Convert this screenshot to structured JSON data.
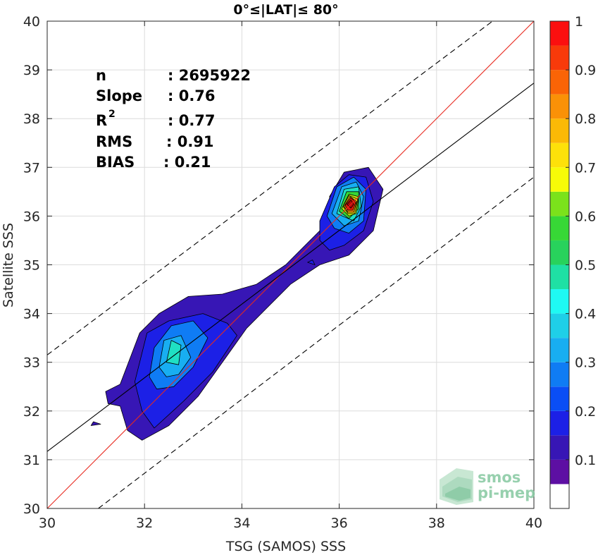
{
  "chart_data": {
    "type": "heatmap",
    "subtype": "filled-contour density (normalized)",
    "title": "0°≤|LAT|≤ 80°",
    "xlabel": "TSG (SAMOS) SSS",
    "ylabel": "Satellite SSS",
    "xlim": [
      30,
      40
    ],
    "ylim": [
      30,
      40
    ],
    "xticks": [
      "30",
      "32",
      "34",
      "36",
      "38",
      "40"
    ],
    "yticks": [
      "30",
      "31",
      "32",
      "33",
      "34",
      "35",
      "36",
      "37",
      "38",
      "39",
      "40"
    ],
    "grid": true,
    "stats": [
      {
        "label": "n",
        "value": ": 2695922"
      },
      {
        "label": "Slope",
        "value": ": 0.76"
      },
      {
        "label": "R",
        "sup": "2",
        "value": ": 0.77"
      },
      {
        "label": "RMS",
        "value": ": 0.91"
      },
      {
        "label": "BIAS",
        "value": ": 0.21"
      }
    ],
    "lines": [
      {
        "kind": "one-to-one",
        "color": "#e8281e",
        "style": "solid",
        "points": [
          [
            30,
            30
          ],
          [
            40,
            40
          ]
        ]
      },
      {
        "kind": "regression",
        "color": "#000000",
        "style": "solid",
        "points": [
          [
            30,
            31.17
          ],
          [
            40,
            38.73
          ]
        ]
      },
      {
        "kind": "upper-bound",
        "color": "#000000",
        "style": "dashed",
        "points": [
          [
            30,
            33.15
          ],
          [
            39.15,
            40
          ]
        ]
      },
      {
        "kind": "lower-bound",
        "color": "#000000",
        "style": "dashed",
        "points": [
          [
            31.05,
            30
          ],
          [
            40,
            36.8
          ]
        ]
      }
    ],
    "density_levels": [
      0.05,
      0.1,
      0.2,
      0.3,
      0.4,
      0.5,
      0.6,
      0.7,
      0.8,
      0.9
    ],
    "contours": [
      {
        "level": 0.05,
        "color": "#3716b5",
        "points": [
          [
            30.9,
            31.7
          ],
          [
            31.1,
            31.73
          ],
          [
            30.95,
            31.78
          ]
        ]
      },
      {
        "level": 0.05,
        "color": "#3716b5",
        "points": [
          [
            31.2,
            32.4
          ],
          [
            31.5,
            32.55
          ],
          [
            31.9,
            33.6
          ],
          [
            32.3,
            34.0
          ],
          [
            32.9,
            34.35
          ],
          [
            33.6,
            34.4
          ],
          [
            34.3,
            34.6
          ],
          [
            34.9,
            35.0
          ],
          [
            35.3,
            35.4
          ],
          [
            35.6,
            35.7
          ],
          [
            35.9,
            35.95
          ],
          [
            35.8,
            36.4
          ],
          [
            36.1,
            36.9
          ],
          [
            36.6,
            37.0
          ],
          [
            36.9,
            36.55
          ],
          [
            36.7,
            35.7
          ],
          [
            36.2,
            35.2
          ],
          [
            35.6,
            35.0
          ],
          [
            35.3,
            34.8
          ],
          [
            35.0,
            34.6
          ],
          [
            34.4,
            34.0
          ],
          [
            34.1,
            33.7
          ],
          [
            33.6,
            33.0
          ],
          [
            33.1,
            32.3
          ],
          [
            32.5,
            31.7
          ],
          [
            31.95,
            31.4
          ],
          [
            31.65,
            31.6
          ],
          [
            31.5,
            32.1
          ],
          [
            31.25,
            32.15
          ]
        ]
      },
      {
        "level": 0.1,
        "color": "#1c20e6",
        "points": [
          [
            31.8,
            32.6
          ],
          [
            32.05,
            33.6
          ],
          [
            32.5,
            33.85
          ],
          [
            33.2,
            34.0
          ],
          [
            33.7,
            33.8
          ],
          [
            33.9,
            33.55
          ],
          [
            33.4,
            32.8
          ],
          [
            32.8,
            32.2
          ],
          [
            32.2,
            31.65
          ],
          [
            31.95,
            32.0
          ]
        ]
      },
      {
        "level": 0.1,
        "color": "#1c20e6",
        "points": [
          [
            35.6,
            35.9
          ],
          [
            35.9,
            36.6
          ],
          [
            36.2,
            36.85
          ],
          [
            36.55,
            36.8
          ],
          [
            36.7,
            36.3
          ],
          [
            36.5,
            35.7
          ],
          [
            36.1,
            35.4
          ],
          [
            35.8,
            35.3
          ],
          [
            35.6,
            35.5
          ]
        ]
      },
      {
        "level": 0.1,
        "color": "#1c20e6",
        "points": [
          [
            35.35,
            35.05
          ],
          [
            35.5,
            35.0
          ],
          [
            35.45,
            35.1
          ]
        ]
      },
      {
        "level": 0.2,
        "color": "#0f7cf4",
        "points": [
          [
            32.1,
            32.7
          ],
          [
            32.2,
            33.3
          ],
          [
            32.55,
            33.75
          ],
          [
            33.0,
            33.85
          ],
          [
            33.3,
            33.5
          ],
          [
            33.0,
            32.9
          ],
          [
            32.6,
            32.5
          ],
          [
            32.25,
            32.45
          ]
        ]
      },
      {
        "level": 0.2,
        "color": "#0f7cf4",
        "points": [
          [
            35.75,
            36.0
          ],
          [
            35.95,
            36.6
          ],
          [
            36.3,
            36.8
          ],
          [
            36.55,
            36.55
          ],
          [
            36.5,
            35.9
          ],
          [
            36.2,
            35.65
          ],
          [
            35.9,
            35.75
          ]
        ]
      },
      {
        "level": 0.3,
        "color": "#18aef1",
        "points": [
          [
            32.3,
            32.9
          ],
          [
            32.4,
            33.45
          ],
          [
            32.75,
            33.55
          ],
          [
            32.95,
            33.1
          ],
          [
            32.7,
            32.75
          ],
          [
            32.45,
            32.7
          ]
        ]
      },
      {
        "level": 0.3,
        "color": "#18aef1",
        "points": [
          [
            35.85,
            36.05
          ],
          [
            36.05,
            36.6
          ],
          [
            36.35,
            36.7
          ],
          [
            36.5,
            36.4
          ],
          [
            36.4,
            35.9
          ],
          [
            36.1,
            35.8
          ]
        ]
      },
      {
        "level": 0.4,
        "color": "#1fe0c3",
        "points": [
          [
            32.45,
            33.0
          ],
          [
            32.55,
            33.45
          ],
          [
            32.75,
            33.35
          ],
          [
            32.7,
            32.95
          ]
        ]
      },
      {
        "level": 0.4,
        "color": "#1fe0c3",
        "points": [
          [
            35.95,
            36.05
          ],
          [
            36.1,
            36.55
          ],
          [
            36.4,
            36.6
          ],
          [
            36.45,
            36.2
          ],
          [
            36.3,
            35.9
          ]
        ]
      },
      {
        "level": 0.5,
        "color": "#37d836",
        "points": [
          [
            36.0,
            36.1
          ],
          [
            36.15,
            36.5
          ],
          [
            36.4,
            36.5
          ],
          [
            36.4,
            36.15
          ],
          [
            36.2,
            35.95
          ]
        ]
      },
      {
        "level": 0.6,
        "color": "#b9ef0e",
        "points": [
          [
            36.05,
            36.15
          ],
          [
            36.2,
            36.45
          ],
          [
            36.4,
            36.4
          ],
          [
            36.35,
            36.05
          ],
          [
            36.2,
            36.0
          ]
        ]
      },
      {
        "level": 0.7,
        "color": "#fde10a",
        "points": [
          [
            36.08,
            36.2
          ],
          [
            36.2,
            36.42
          ],
          [
            36.38,
            36.35
          ],
          [
            36.32,
            36.05
          ],
          [
            36.18,
            36.05
          ]
        ]
      },
      {
        "level": 0.8,
        "color": "#fa9107",
        "points": [
          [
            36.1,
            36.2
          ],
          [
            36.22,
            36.4
          ],
          [
            36.36,
            36.3
          ],
          [
            36.3,
            36.08
          ],
          [
            36.18,
            36.08
          ]
        ]
      },
      {
        "level": 0.9,
        "color": "#e61a0a",
        "points": [
          [
            36.12,
            36.22
          ],
          [
            36.24,
            36.38
          ],
          [
            36.34,
            36.28
          ],
          [
            36.28,
            36.12
          ],
          [
            36.18,
            36.12
          ]
        ]
      },
      {
        "level": 0.95,
        "color": "#b1080a",
        "points": [
          [
            36.16,
            36.24
          ],
          [
            36.24,
            36.33
          ],
          [
            36.3,
            36.24
          ],
          [
            36.24,
            36.16
          ]
        ]
      }
    ],
    "colorbar": {
      "ticks": [
        "0.1",
        "0.2",
        "0.3",
        "0.4",
        "0.5",
        "0.6",
        "0.7",
        "0.8",
        "0.9",
        "1"
      ],
      "tick_values": [
        0.1,
        0.2,
        0.3,
        0.4,
        0.5,
        0.6,
        0.7,
        0.8,
        0.9,
        1.0
      ],
      "range": [
        0,
        1
      ],
      "bands": [
        {
          "from": 0.0,
          "to": 0.05,
          "color": "#ffffff"
        },
        {
          "from": 0.05,
          "to": 0.1,
          "color": "#5d0fa3"
        },
        {
          "from": 0.1,
          "to": 0.15,
          "color": "#3716b5"
        },
        {
          "from": 0.15,
          "to": 0.2,
          "color": "#1c20e6"
        },
        {
          "from": 0.2,
          "to": 0.25,
          "color": "#0a4ef5"
        },
        {
          "from": 0.25,
          "to": 0.3,
          "color": "#0f7cf4"
        },
        {
          "from": 0.3,
          "to": 0.35,
          "color": "#18aef1"
        },
        {
          "from": 0.35,
          "to": 0.4,
          "color": "#1fcfe8"
        },
        {
          "from": 0.4,
          "to": 0.45,
          "color": "#1ff9f3"
        },
        {
          "from": 0.45,
          "to": 0.5,
          "color": "#1fe0a4"
        },
        {
          "from": 0.5,
          "to": 0.55,
          "color": "#28d25c"
        },
        {
          "from": 0.55,
          "to": 0.6,
          "color": "#37d836"
        },
        {
          "from": 0.6,
          "to": 0.65,
          "color": "#7be21b"
        },
        {
          "from": 0.65,
          "to": 0.7,
          "color": "#f7fb08"
        },
        {
          "from": 0.7,
          "to": 0.75,
          "color": "#fde10a"
        },
        {
          "from": 0.75,
          "to": 0.8,
          "color": "#fbb906"
        },
        {
          "from": 0.8,
          "to": 0.85,
          "color": "#fa9107"
        },
        {
          "from": 0.85,
          "to": 0.9,
          "color": "#fa6406"
        },
        {
          "from": 0.9,
          "to": 0.95,
          "color": "#f83a0a"
        },
        {
          "from": 0.95,
          "to": 1.0,
          "color": "#fb0f0f"
        }
      ]
    }
  },
  "logo": {
    "line1": "smos",
    "line2": "pi-mep"
  }
}
